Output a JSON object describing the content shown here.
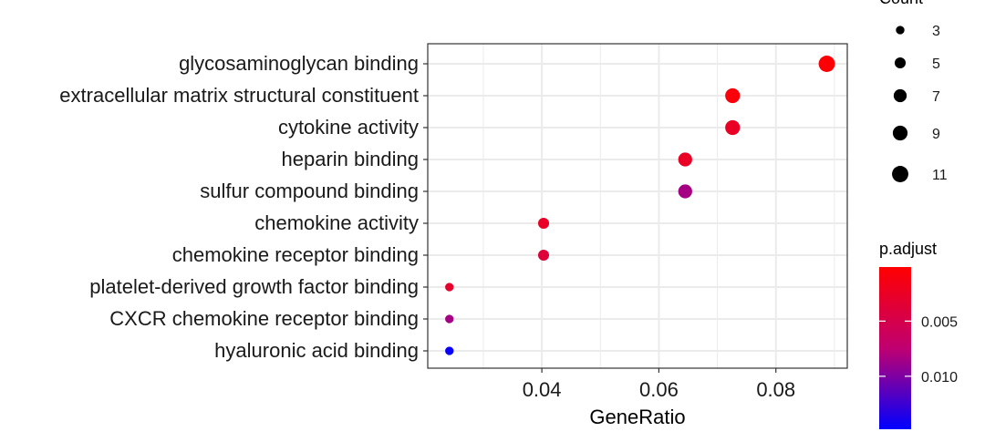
{
  "chart_data": {
    "type": "scatter",
    "title": "",
    "xlabel": "GeneRatio",
    "ylabel": "",
    "xlim": [
      0.0205,
      0.0922
    ],
    "xticks": [
      0.04,
      0.06,
      0.08
    ],
    "xtick_labels": [
      "0.04",
      "0.06",
      "0.08"
    ],
    "grid": true,
    "categories": [
      "glycosaminoglycan binding",
      "extracellular matrix structural constituent",
      "cytokine activity",
      "heparin binding",
      "sulfur compound binding",
      "chemokine activity",
      "chemokine receptor binding",
      "platelet-derived growth factor binding",
      "CXCR chemokine receptor binding",
      "hyaluronic acid binding"
    ],
    "points": [
      {
        "term": "glycosaminoglycan binding",
        "gene_ratio": 0.0887,
        "count": 11,
        "p_adjust": 0.0005
      },
      {
        "term": "extracellular matrix structural constituent",
        "gene_ratio": 0.0726,
        "count": 9,
        "p_adjust": 0.0008
      },
      {
        "term": "cytokine activity",
        "gene_ratio": 0.0726,
        "count": 9,
        "p_adjust": 0.0025
      },
      {
        "term": "heparin binding",
        "gene_ratio": 0.0645,
        "count": 8,
        "p_adjust": 0.0025
      },
      {
        "term": "sulfur compound binding",
        "gene_ratio": 0.0645,
        "count": 8,
        "p_adjust": 0.0085
      },
      {
        "term": "chemokine activity",
        "gene_ratio": 0.0403,
        "count": 5,
        "p_adjust": 0.0025
      },
      {
        "term": "chemokine receptor binding",
        "gene_ratio": 0.0403,
        "count": 5,
        "p_adjust": 0.004
      },
      {
        "term": "platelet-derived growth factor binding",
        "gene_ratio": 0.0242,
        "count": 3,
        "p_adjust": 0.003
      },
      {
        "term": "CXCR chemokine receptor binding",
        "gene_ratio": 0.0242,
        "count": 3,
        "p_adjust": 0.0085
      },
      {
        "term": "hyaluronic acid binding",
        "gene_ratio": 0.0242,
        "count": 3,
        "p_adjust": 0.0145
      }
    ],
    "size_legend": {
      "title": "Count",
      "values": [
        3,
        5,
        7,
        9,
        11
      ],
      "labels": [
        "3",
        "5",
        "7",
        "9",
        "11"
      ]
    },
    "color_legend": {
      "title": "p.adjust",
      "range": [
        0.0001,
        0.0148
      ],
      "ticks": [
        0.005,
        0.01
      ],
      "tick_labels": [
        "0.005",
        "0.010"
      ],
      "low_color": "#ff0000",
      "mid_color": "#c00070",
      "high_color": "#0000ff"
    },
    "legend_placement": "right"
  }
}
